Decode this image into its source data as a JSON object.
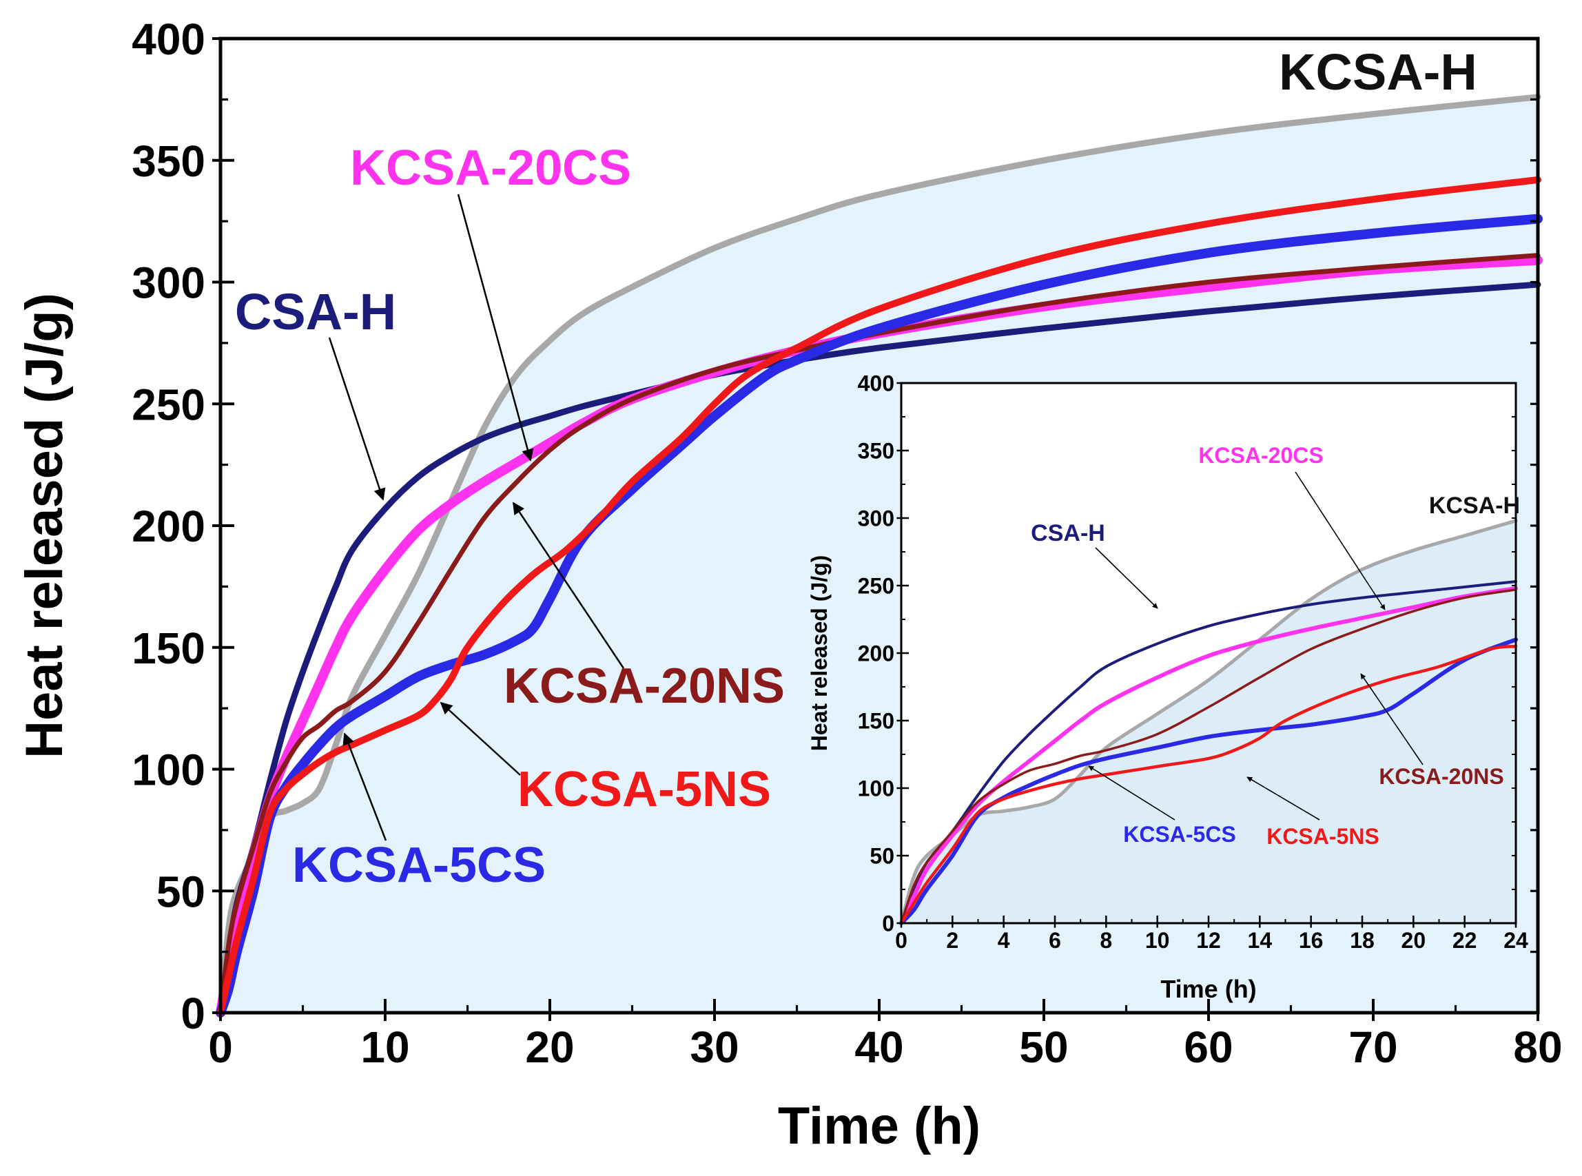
{
  "chart_data": [
    {
      "type": "line",
      "title": "",
      "xlabel": "Time (h)",
      "ylabel": "Heat released (J/g)",
      "xlim": [
        0,
        80
      ],
      "ylim": [
        0,
        400
      ],
      "xticks": [
        0,
        10,
        20,
        30,
        40,
        50,
        60,
        70,
        80
      ],
      "yticks": [
        0,
        50,
        100,
        150,
        200,
        250,
        300,
        350,
        400
      ],
      "grid": false,
      "shaded_series": "KCSA-H",
      "series": [
        {
          "name": "KCSA-H",
          "color": "#a8a8a8",
          "x": [
            0,
            0.5,
            1,
            2,
            3,
            4,
            5,
            6,
            7,
            8,
            10,
            12,
            14,
            16,
            18,
            20,
            22,
            25,
            30,
            35,
            40,
            50,
            60,
            70,
            80
          ],
          "y": [
            0,
            35,
            50,
            65,
            80,
            83,
            86,
            92,
            110,
            130,
            155,
            180,
            210,
            240,
            262,
            276,
            287,
            298,
            314,
            326,
            336,
            350,
            361,
            369,
            376
          ]
        },
        {
          "name": "CSA-H",
          "color": "#1c1c7a",
          "x": [
            0,
            0.5,
            1,
            2,
            3,
            4,
            5,
            6,
            7,
            8,
            10,
            12,
            14,
            16,
            18,
            20,
            22,
            25,
            30,
            35,
            40,
            50,
            60,
            70,
            80
          ],
          "y": [
            0,
            25,
            45,
            68,
            95,
            120,
            140,
            158,
            175,
            190,
            207,
            220,
            229,
            236,
            241,
            245,
            249,
            254,
            262,
            268,
            273,
            281,
            288,
            294,
            299
          ]
        },
        {
          "name": "KCSA-20CS",
          "color": "#ff33ee",
          "x": [
            0,
            0.5,
            1,
            2,
            3,
            4,
            5,
            6,
            7,
            8,
            10,
            12,
            14,
            16,
            18,
            20,
            22,
            25,
            30,
            35,
            40,
            50,
            60,
            70,
            80
          ],
          "y": [
            0,
            20,
            40,
            65,
            88,
            105,
            120,
            135,
            150,
            163,
            182,
            198,
            209,
            218,
            226,
            234,
            242,
            252,
            263,
            272,
            279,
            290,
            298,
            305,
            309
          ]
        },
        {
          "name": "KCSA-20NS",
          "color": "#8b1a1a",
          "x": [
            0,
            0.5,
            1,
            2,
            3,
            4,
            5,
            6,
            7,
            8,
            10,
            12,
            14,
            16,
            18,
            20,
            22,
            25,
            30,
            35,
            40,
            50,
            60,
            70,
            80
          ],
          "y": [
            0,
            28,
            45,
            68,
            90,
            103,
            113,
            118,
            124,
            128,
            140,
            160,
            182,
            203,
            218,
            231,
            241,
            252,
            264,
            272,
            279,
            291,
            300,
            306,
            311
          ]
        },
        {
          "name": "KCSA-5CS",
          "color": "#2a2ae6",
          "x": [
            0,
            0.5,
            1,
            2,
            3,
            4,
            5,
            6,
            7,
            8,
            10,
            12,
            14,
            16,
            18,
            19,
            20,
            22,
            25,
            28,
            30,
            33,
            35,
            40,
            50,
            60,
            70,
            80
          ],
          "y": [
            0,
            10,
            25,
            50,
            80,
            93,
            102,
            110,
            117,
            122,
            130,
            138,
            143,
            147,
            153,
            158,
            170,
            195,
            215,
            233,
            245,
            261,
            268,
            281,
            299,
            312,
            320,
            326
          ]
        },
        {
          "name": "KCSA-5NS",
          "color": "#f01818",
          "x": [
            0,
            0.5,
            1,
            2,
            3,
            4,
            5,
            6,
            7,
            8,
            10,
            12,
            13,
            14,
            15,
            17,
            19,
            21,
            23,
            25,
            28,
            30,
            32,
            35,
            40,
            50,
            60,
            70,
            80
          ],
          "y": [
            0,
            15,
            30,
            55,
            82,
            92,
            98,
            103,
            107,
            110,
            116,
            122,
            128,
            137,
            150,
            167,
            180,
            190,
            203,
            218,
            236,
            250,
            262,
            273,
            289,
            310,
            324,
            334,
            342
          ]
        }
      ],
      "annotations": [
        {
          "text": "KCSA-H",
          "color": "#111111"
        },
        {
          "text": "KCSA-20CS",
          "color": "#ff33ee"
        },
        {
          "text": "CSA-H",
          "color": "#1c1c7a"
        },
        {
          "text": "KCSA-20NS",
          "color": "#8b1a1a"
        },
        {
          "text": "KCSA-5NS",
          "color": "#f01818"
        },
        {
          "text": "KCSA-5CS",
          "color": "#2a2ae6"
        }
      ]
    },
    {
      "type": "line",
      "title": "inset",
      "xlabel": "Time (h)",
      "ylabel": "Heat released (J/g)",
      "xlim": [
        0,
        24
      ],
      "ylim": [
        0,
        400
      ],
      "xticks": [
        0,
        2,
        4,
        6,
        8,
        10,
        12,
        14,
        16,
        18,
        20,
        22,
        24
      ],
      "yticks": [
        0,
        50,
        100,
        150,
        200,
        250,
        300,
        350,
        400
      ],
      "grid": false,
      "shaded_series": "KCSA-H",
      "series": [
        {
          "name": "KCSA-H",
          "color": "#a8a8a8",
          "x": [
            0,
            0.5,
            1,
            2,
            3,
            4,
            5,
            6,
            7,
            8,
            10,
            12,
            14,
            16,
            18,
            20,
            22,
            24
          ],
          "y": [
            0,
            35,
            50,
            65,
            80,
            83,
            86,
            92,
            110,
            130,
            155,
            180,
            210,
            240,
            262,
            276,
            287,
            298
          ]
        },
        {
          "name": "CSA-H",
          "color": "#1c1c7a",
          "x": [
            0,
            0.5,
            1,
            2,
            3,
            4,
            5,
            6,
            7,
            8,
            10,
            12,
            14,
            16,
            18,
            20,
            22,
            24
          ],
          "y": [
            0,
            25,
            45,
            68,
            95,
            120,
            140,
            158,
            175,
            190,
            207,
            220,
            229,
            236,
            241,
            245,
            249,
            253
          ]
        },
        {
          "name": "KCSA-20CS",
          "color": "#ff33ee",
          "x": [
            0,
            0.5,
            1,
            2,
            3,
            4,
            5,
            6,
            7,
            8,
            10,
            12,
            14,
            16,
            18,
            20,
            22,
            24
          ],
          "y": [
            0,
            20,
            40,
            65,
            88,
            105,
            120,
            135,
            150,
            163,
            182,
            198,
            209,
            218,
            226,
            234,
            242,
            248
          ]
        },
        {
          "name": "KCSA-20NS",
          "color": "#8b1a1a",
          "x": [
            0,
            0.5,
            1,
            2,
            3,
            4,
            5,
            6,
            7,
            8,
            10,
            12,
            14,
            16,
            18,
            20,
            22,
            24
          ],
          "y": [
            0,
            28,
            45,
            68,
            90,
            103,
            113,
            118,
            124,
            128,
            140,
            160,
            182,
            203,
            218,
            231,
            241,
            247
          ]
        },
        {
          "name": "KCSA-5CS",
          "color": "#2a2ae6",
          "x": [
            0,
            0.5,
            1,
            2,
            3,
            4,
            5,
            6,
            7,
            8,
            10,
            12,
            14,
            16,
            18,
            19,
            20,
            22,
            24
          ],
          "y": [
            0,
            10,
            25,
            50,
            80,
            93,
            102,
            110,
            117,
            122,
            130,
            138,
            143,
            147,
            153,
            158,
            170,
            195,
            210
          ]
        },
        {
          "name": "KCSA-5NS",
          "color": "#f01818",
          "x": [
            0,
            0.5,
            1,
            2,
            3,
            4,
            5,
            6,
            7,
            8,
            10,
            12,
            13,
            14,
            15,
            17,
            19,
            21,
            23,
            24
          ],
          "y": [
            0,
            15,
            30,
            55,
            82,
            92,
            98,
            103,
            107,
            110,
            116,
            122,
            128,
            137,
            150,
            167,
            180,
            190,
            203,
            205
          ]
        }
      ],
      "annotations": [
        {
          "text": "KCSA-H",
          "color": "#111111"
        },
        {
          "text": "KCSA-20CS",
          "color": "#ff33ee"
        },
        {
          "text": "CSA-H",
          "color": "#1c1c7a"
        },
        {
          "text": "KCSA-20NS",
          "color": "#8b1a1a"
        },
        {
          "text": "KCSA-5NS",
          "color": "#f01818"
        },
        {
          "text": "KCSA-5CS",
          "color": "#2a2ae6"
        }
      ]
    }
  ]
}
